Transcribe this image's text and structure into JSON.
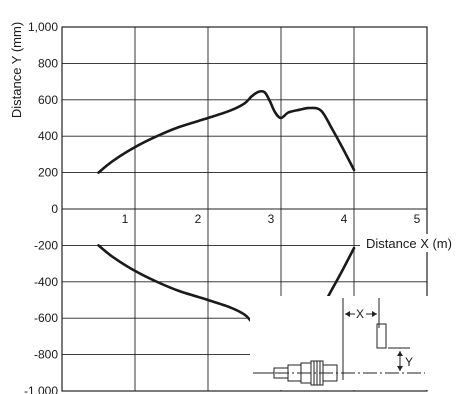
{
  "chart_data": {
    "type": "line",
    "xlabel": "Distance X (m)",
    "ylabel": "Distance Y (mm)",
    "xlim": [
      0,
      5
    ],
    "ylim": [
      -1000,
      1000
    ],
    "x_ticks": [
      "1",
      "2",
      "3",
      "4",
      "5"
    ],
    "y_ticks": [
      "1,000",
      "800",
      "600",
      "400",
      "200",
      "0",
      "-200",
      "-400",
      "-600",
      "-800",
      "-1,000"
    ],
    "grid": true,
    "series": [
      {
        "x": [
          0.5,
          0.7,
          1.0,
          1.3,
          1.6,
          2.0,
          2.3,
          2.5,
          2.6,
          2.7,
          2.78,
          2.85,
          2.92,
          3.0,
          3.1,
          3.25,
          3.4,
          3.55,
          3.7,
          3.85,
          4.0
        ],
        "y": [
          200,
          265,
          340,
          400,
          450,
          500,
          540,
          580,
          620,
          645,
          640,
          590,
          530,
          500,
          530,
          545,
          555,
          540,
          440,
          330,
          215
        ]
      },
      {
        "x": [
          0.5,
          0.7,
          1.0,
          1.3,
          1.6,
          2.0,
          2.3,
          2.5,
          2.6,
          2.7,
          2.78,
          2.85,
          2.92,
          3.0,
          3.1,
          3.25,
          3.4,
          3.55,
          3.7,
          3.85,
          4.0
        ],
        "y": [
          -200,
          -265,
          -340,
          -400,
          -450,
          -500,
          -540,
          -580,
          -620,
          -645,
          -640,
          -590,
          -530,
          -500,
          -530,
          -545,
          -555,
          -540,
          -440,
          -330,
          -215
        ]
      }
    ]
  },
  "inset": {
    "x_label": "X",
    "y_label": "Y"
  }
}
